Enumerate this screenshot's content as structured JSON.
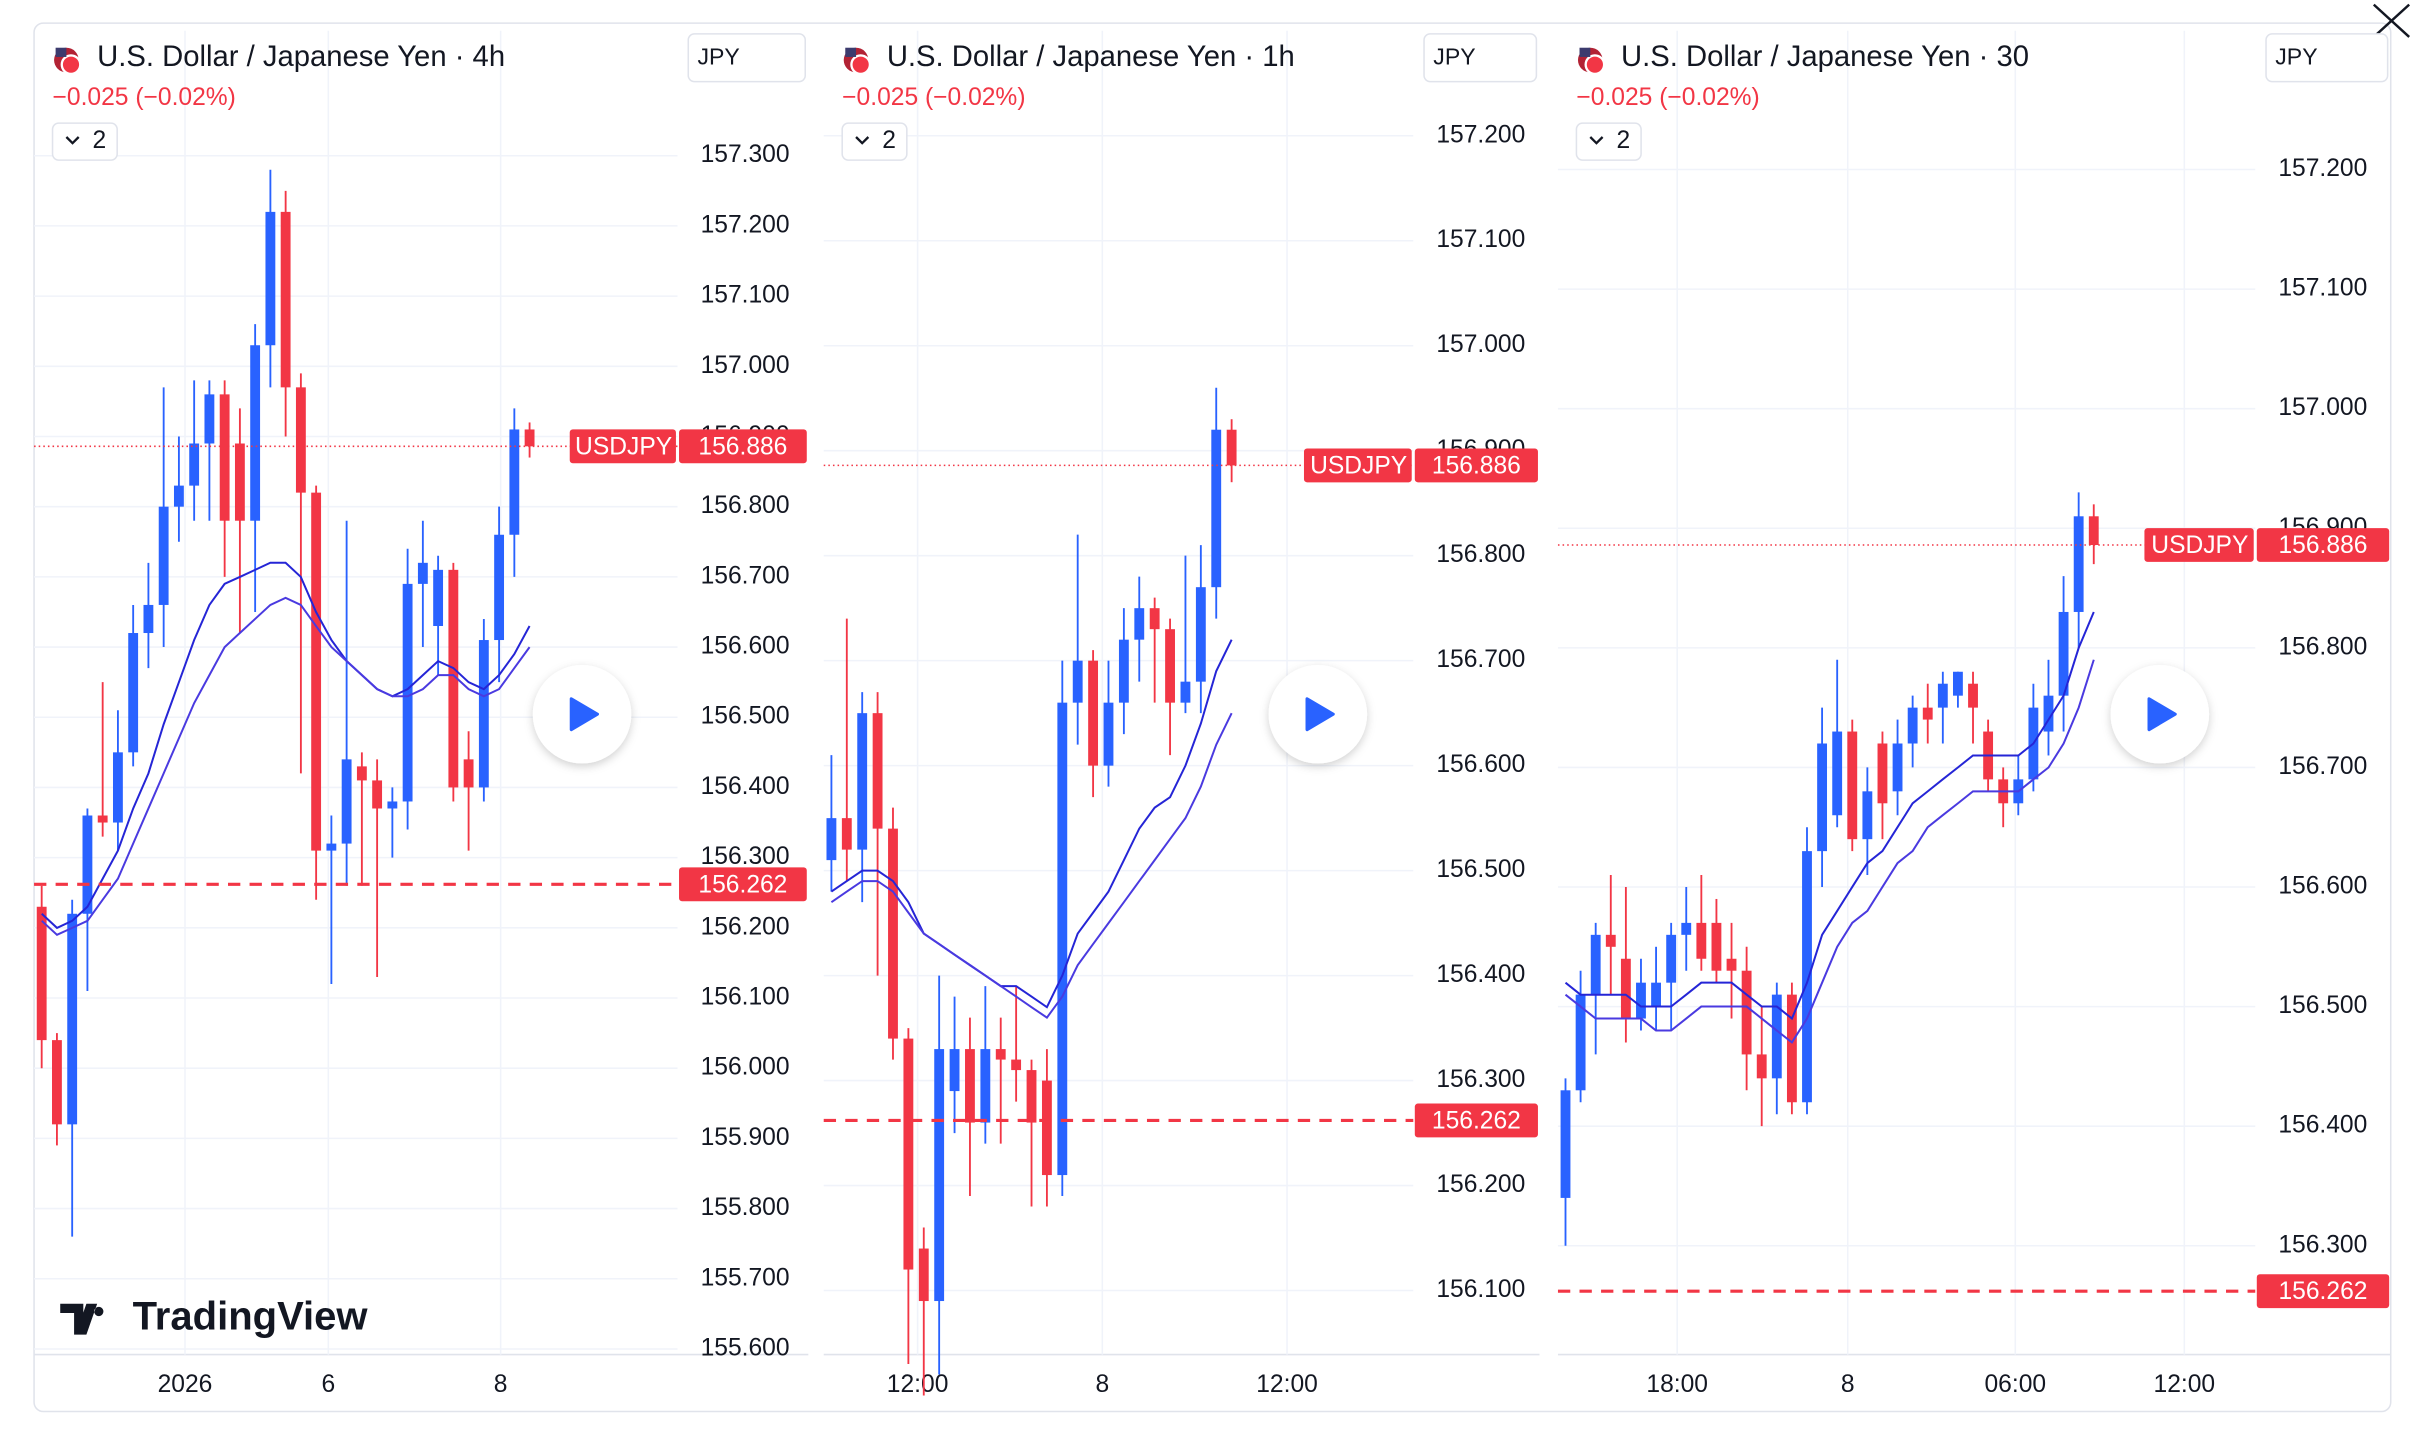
{
  "brand": "TradingView",
  "chart_data": [
    {
      "type": "candlestick",
      "title": "U.S. Dollar / Japanese Yen · 4h",
      "change": "−0.025 (−0.02%)",
      "indicator_count": 2,
      "currency": "JPY",
      "symbol": "USDJPY",
      "last_price": 156.886,
      "reference_line": 156.262,
      "up_color": "#2962ff",
      "down_color": "#f23645",
      "ylim": [
        155.592,
        157.478
      ],
      "yticks": [
        {
          "value": 155.6,
          "label": "155.600"
        },
        {
          "value": 155.7,
          "label": "155.700"
        },
        {
          "value": 155.8,
          "label": "155.800"
        },
        {
          "value": 155.9,
          "label": "155.900"
        },
        {
          "value": 156.0,
          "label": "156.000"
        },
        {
          "value": 156.1,
          "label": "156.100"
        },
        {
          "value": 156.2,
          "label": "156.200"
        },
        {
          "value": 156.3,
          "label": "156.300"
        },
        {
          "value": 156.4,
          "label": "156.400"
        },
        {
          "value": 156.5,
          "label": "156.500"
        },
        {
          "value": 156.6,
          "label": "156.600"
        },
        {
          "value": 156.7,
          "label": "156.700"
        },
        {
          "value": 156.8,
          "label": "156.800"
        },
        {
          "value": 156.9,
          "label": "156.900"
        },
        {
          "value": 157.0,
          "label": "157.000"
        },
        {
          "value": 157.1,
          "label": "157.100"
        },
        {
          "value": 157.2,
          "label": "157.200"
        },
        {
          "value": 157.3,
          "label": "157.300"
        }
      ],
      "xlim": [
        -0.5,
        41.7
      ],
      "xticks": [
        {
          "value": 9.4,
          "label": "2026"
        },
        {
          "value": 18.8,
          "label": "6"
        },
        {
          "value": 30.1,
          "label": "8"
        }
      ],
      "open": [
        156.23,
        156.04,
        155.92,
        156.22,
        156.36,
        156.35,
        156.45,
        156.62,
        156.66,
        156.8,
        156.83,
        156.89,
        156.96,
        156.89,
        156.78,
        157.03,
        157.22,
        156.97,
        156.82,
        156.31,
        156.32,
        156.43,
        156.41,
        156.37,
        156.38,
        156.69,
        156.63,
        156.71,
        156.44,
        156.4,
        156.61,
        156.76,
        156.91
      ],
      "high": [
        156.26,
        156.05,
        156.24,
        156.37,
        156.55,
        156.51,
        156.66,
        156.72,
        156.97,
        156.9,
        156.98,
        156.98,
        156.98,
        156.94,
        157.06,
        157.28,
        157.25,
        156.99,
        156.83,
        156.36,
        156.78,
        156.45,
        156.44,
        156.4,
        156.74,
        156.78,
        156.73,
        156.72,
        156.48,
        156.64,
        156.8,
        156.94,
        156.92
      ],
      "low": [
        156.0,
        155.89,
        155.76,
        156.11,
        156.33,
        156.31,
        156.43,
        156.57,
        156.6,
        156.75,
        156.78,
        156.78,
        156.7,
        156.62,
        156.65,
        156.97,
        156.9,
        156.42,
        156.24,
        156.12,
        156.26,
        156.26,
        156.13,
        156.3,
        156.34,
        156.6,
        156.56,
        156.38,
        156.31,
        156.38,
        156.55,
        156.7,
        156.87
      ],
      "close": [
        156.04,
        155.92,
        156.22,
        156.36,
        156.35,
        156.45,
        156.62,
        156.66,
        156.8,
        156.83,
        156.89,
        156.96,
        156.78,
        156.78,
        157.03,
        157.22,
        156.97,
        156.82,
        156.31,
        156.32,
        156.44,
        156.41,
        156.37,
        156.38,
        156.69,
        156.72,
        156.71,
        156.4,
        156.4,
        156.61,
        156.76,
        156.91,
        156.886
      ],
      "series": [
        {
          "color": "#2525d6",
          "values": [
            156.22,
            156.2,
            156.21,
            156.23,
            156.27,
            156.31,
            156.37,
            156.42,
            156.49,
            156.55,
            156.61,
            156.66,
            156.69,
            156.7,
            156.71,
            156.72,
            156.72,
            156.7,
            156.65,
            156.61,
            156.58,
            156.56,
            156.54,
            156.53,
            156.54,
            156.56,
            156.58,
            156.57,
            156.55,
            156.54,
            156.56,
            156.59,
            156.63
          ]
        },
        {
          "color": "#4a3ae0",
          "values": [
            156.21,
            156.19,
            156.2,
            156.21,
            156.24,
            156.27,
            156.32,
            156.37,
            156.42,
            156.47,
            156.52,
            156.56,
            156.6,
            156.62,
            156.64,
            156.66,
            156.67,
            156.66,
            156.63,
            156.6,
            156.58,
            156.56,
            156.54,
            156.53,
            156.53,
            156.54,
            156.56,
            156.56,
            156.54,
            156.53,
            156.54,
            156.57,
            156.6
          ]
        }
      ]
    },
    {
      "type": "candlestick",
      "title": "U.S. Dollar / Japanese Yen · 1h",
      "change": "−0.025 (−0.02%)",
      "indicator_count": 2,
      "currency": "JPY",
      "symbol": "USDJPY",
      "last_price": 156.886,
      "reference_line": 156.262,
      "up_color": "#2962ff",
      "down_color": "#f23645",
      "ylim": [
        156.039,
        157.3
      ],
      "yticks": [
        {
          "value": 156.1,
          "label": "156.100"
        },
        {
          "value": 156.2,
          "label": "156.200"
        },
        {
          "value": 156.3,
          "label": "156.300"
        },
        {
          "value": 156.4,
          "label": "156.400"
        },
        {
          "value": 156.5,
          "label": "156.500"
        },
        {
          "value": 156.6,
          "label": "156.600"
        },
        {
          "value": 156.7,
          "label": "156.700"
        },
        {
          "value": 156.8,
          "label": "156.800"
        },
        {
          "value": 156.9,
          "label": "156.900"
        },
        {
          "value": 157.0,
          "label": "157.000"
        },
        {
          "value": 157.1,
          "label": "157.100"
        },
        {
          "value": 157.2,
          "label": "157.200"
        }
      ],
      "xlim": [
        -0.5,
        37.8
      ],
      "xticks": [
        {
          "value": 5.6,
          "label": "12:00"
        },
        {
          "value": 17.6,
          "label": "8"
        },
        {
          "value": 29.6,
          "label": "12:00"
        }
      ],
      "open": [
        156.51,
        156.55,
        156.52,
        156.65,
        156.54,
        156.34,
        156.14,
        156.09,
        156.29,
        156.33,
        156.26,
        156.33,
        156.32,
        156.31,
        156.3,
        156.21,
        156.66,
        156.7,
        156.6,
        156.66,
        156.72,
        156.75,
        156.73,
        156.66,
        156.68,
        156.77,
        156.92
      ],
      "high": [
        156.61,
        156.74,
        156.67,
        156.67,
        156.56,
        156.35,
        156.16,
        156.4,
        156.38,
        156.36,
        156.39,
        156.36,
        156.39,
        156.32,
        156.33,
        156.7,
        156.82,
        156.71,
        156.7,
        156.75,
        156.78,
        156.76,
        156.74,
        156.8,
        156.81,
        156.96,
        156.93
      ],
      "low": [
        156.48,
        156.49,
        156.47,
        156.4,
        156.32,
        156.03,
        156.0,
        156.02,
        156.25,
        156.19,
        156.24,
        156.24,
        156.28,
        156.18,
        156.18,
        156.19,
        156.62,
        156.57,
        156.58,
        156.63,
        156.68,
        156.66,
        156.61,
        156.65,
        156.65,
        156.74,
        156.87
      ],
      "close": [
        156.55,
        156.52,
        156.65,
        156.54,
        156.34,
        156.12,
        156.09,
        156.33,
        156.33,
        156.26,
        156.33,
        156.32,
        156.31,
        156.26,
        156.21,
        156.66,
        156.7,
        156.6,
        156.66,
        156.72,
        156.75,
        156.73,
        156.66,
        156.68,
        156.77,
        156.92,
        156.886
      ],
      "series": [
        {
          "color": "#2525d6",
          "values": [
            156.48,
            156.49,
            156.5,
            156.5,
            156.49,
            156.47,
            156.44,
            156.43,
            156.42,
            156.41,
            156.4,
            156.39,
            156.39,
            156.38,
            156.37,
            156.4,
            156.44,
            156.46,
            156.48,
            156.51,
            156.54,
            156.56,
            156.57,
            156.6,
            156.64,
            156.69,
            156.72
          ]
        },
        {
          "color": "#4a3ae0",
          "values": [
            156.47,
            156.48,
            156.49,
            156.49,
            156.48,
            156.46,
            156.44,
            156.43,
            156.42,
            156.41,
            156.4,
            156.39,
            156.38,
            156.37,
            156.36,
            156.38,
            156.41,
            156.43,
            156.45,
            156.47,
            156.49,
            156.51,
            156.53,
            156.55,
            156.58,
            156.62,
            156.65
          ]
        }
      ]
    },
    {
      "type": "candlestick",
      "title": "U.S. Dollar / Japanese Yen · 30",
      "change": "−0.025 (−0.02%)",
      "indicator_count": 2,
      "currency": "JPY",
      "symbol": "USDJPY",
      "last_price": 156.886,
      "reference_line": 156.262,
      "up_color": "#2962ff",
      "down_color": "#f23645",
      "ylim": [
        156.209,
        157.316
      ],
      "yticks": [
        {
          "value": 156.3,
          "label": "156.300"
        },
        {
          "value": 156.4,
          "label": "156.400"
        },
        {
          "value": 156.5,
          "label": "156.500"
        },
        {
          "value": 156.6,
          "label": "156.600"
        },
        {
          "value": 156.7,
          "label": "156.700"
        },
        {
          "value": 156.8,
          "label": "156.800"
        },
        {
          "value": 156.9,
          "label": "156.900"
        },
        {
          "value": 157.0,
          "label": "157.000"
        },
        {
          "value": 157.1,
          "label": "157.100"
        },
        {
          "value": 157.2,
          "label": "157.200"
        }
      ],
      "xlim": [
        -0.5,
        45.7
      ],
      "xticks": [
        {
          "value": 7.4,
          "label": "18:00"
        },
        {
          "value": 18.7,
          "label": "8"
        },
        {
          "value": 29.8,
          "label": "06:00"
        },
        {
          "value": 41.0,
          "label": "12:00"
        }
      ],
      "open": [
        156.34,
        156.43,
        156.51,
        156.56,
        156.54,
        156.49,
        156.5,
        156.52,
        156.56,
        156.57,
        156.57,
        156.54,
        156.53,
        156.46,
        156.44,
        156.51,
        156.42,
        156.63,
        156.66,
        156.73,
        156.64,
        156.72,
        156.68,
        156.72,
        156.75,
        156.75,
        156.76,
        156.77,
        156.73,
        156.69,
        156.67,
        156.69,
        156.73,
        156.76,
        156.83,
        156.91
      ],
      "high": [
        156.44,
        156.53,
        156.57,
        156.61,
        156.6,
        156.54,
        156.55,
        156.57,
        156.6,
        156.61,
        156.59,
        156.57,
        156.55,
        156.5,
        156.52,
        156.52,
        156.65,
        156.75,
        156.79,
        156.74,
        156.7,
        156.73,
        156.74,
        156.76,
        156.77,
        156.78,
        156.78,
        156.78,
        156.74,
        156.7,
        156.71,
        156.77,
        156.79,
        156.86,
        156.93,
        156.92
      ],
      "low": [
        156.3,
        156.42,
        156.46,
        156.51,
        156.47,
        156.48,
        156.48,
        156.48,
        156.53,
        156.53,
        156.52,
        156.49,
        156.43,
        156.4,
        156.41,
        156.41,
        156.41,
        156.6,
        156.65,
        156.63,
        156.61,
        156.64,
        156.66,
        156.7,
        156.72,
        156.72,
        156.75,
        156.72,
        156.68,
        156.65,
        156.66,
        156.68,
        156.71,
        156.73,
        156.8,
        156.87
      ],
      "close": [
        156.43,
        156.51,
        156.56,
        156.55,
        156.49,
        156.52,
        156.52,
        156.56,
        156.57,
        156.54,
        156.53,
        156.53,
        156.46,
        156.44,
        156.51,
        156.42,
        156.63,
        156.72,
        156.73,
        156.64,
        156.68,
        156.67,
        156.72,
        156.75,
        156.74,
        156.77,
        156.78,
        156.75,
        156.69,
        156.67,
        156.69,
        156.75,
        156.76,
        156.83,
        156.91,
        156.886
      ],
      "series": [
        {
          "color": "#2525d6",
          "values": [
            156.52,
            156.51,
            156.51,
            156.51,
            156.51,
            156.5,
            156.5,
            156.5,
            156.51,
            156.52,
            156.52,
            156.52,
            156.51,
            156.5,
            156.5,
            156.49,
            156.52,
            156.56,
            156.58,
            156.6,
            156.62,
            156.63,
            156.65,
            156.67,
            156.68,
            156.69,
            156.7,
            156.71,
            156.71,
            156.71,
            156.71,
            156.72,
            156.74,
            156.76,
            156.8,
            156.83
          ]
        },
        {
          "color": "#4a3ae0",
          "values": [
            156.51,
            156.5,
            156.49,
            156.49,
            156.49,
            156.49,
            156.48,
            156.48,
            156.49,
            156.5,
            156.5,
            156.5,
            156.5,
            156.49,
            156.48,
            156.47,
            156.49,
            156.52,
            156.55,
            156.57,
            156.58,
            156.6,
            156.62,
            156.63,
            156.65,
            156.66,
            156.67,
            156.68,
            156.68,
            156.68,
            156.68,
            156.69,
            156.7,
            156.72,
            156.75,
            156.79
          ]
        }
      ]
    }
  ]
}
